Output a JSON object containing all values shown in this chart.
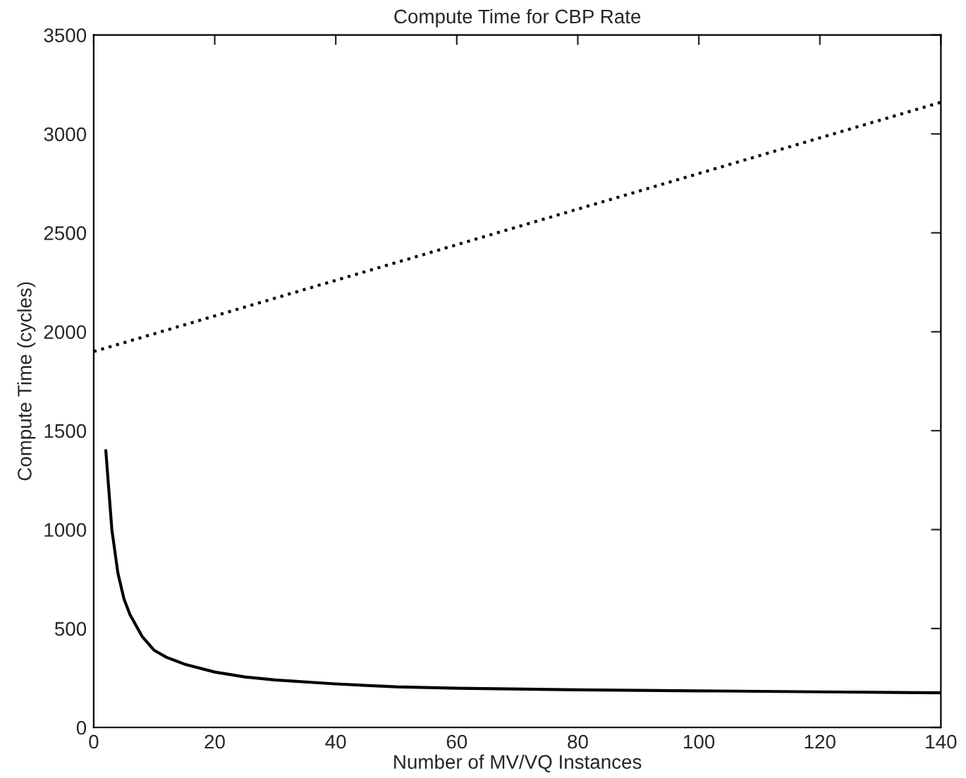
{
  "chart_data": {
    "type": "line",
    "title": "Compute Time for CBP Rate",
    "xlabel": "Number of MV/VQ Instances",
    "ylabel": "Compute Time (cycles)",
    "xlim": [
      0,
      140
    ],
    "xticks": [
      0,
      20,
      40,
      60,
      80,
      100,
      120,
      140
    ],
    "ylim": [
      0,
      3500
    ],
    "yticks": [
      0,
      500,
      1000,
      1500,
      2000,
      2500,
      3000,
      3500
    ],
    "grid": false,
    "legend": false,
    "series": [
      {
        "color": "#000000",
        "line_style": "solid",
        "x": [
          2,
          3,
          4,
          5,
          6,
          8,
          10,
          12,
          15,
          20,
          25,
          30,
          40,
          50,
          60,
          80,
          100,
          120,
          140
        ],
        "values": [
          1400,
          1000,
          780,
          650,
          570,
          460,
          390,
          355,
          320,
          280,
          255,
          240,
          220,
          205,
          198,
          190,
          185,
          180,
          175
        ]
      },
      {
        "color": "#000000",
        "line_style": "dotted",
        "x": [
          0,
          140
        ],
        "values": [
          1900,
          3160
        ]
      }
    ]
  }
}
